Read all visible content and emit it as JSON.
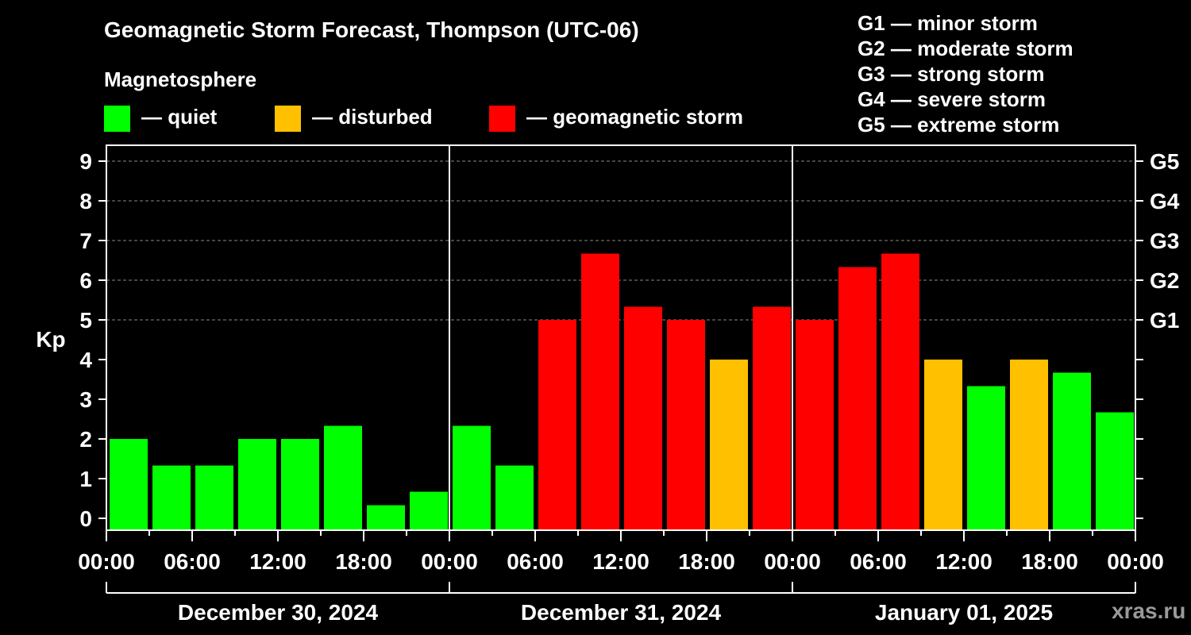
{
  "header": {
    "title": "Geomagnetic Storm Forecast, Thompson (UTC-06)",
    "magnetosphere_label": "Magnetosphere"
  },
  "legend": [
    {
      "label": "— quiet",
      "color": "#00ff00"
    },
    {
      "label": "— disturbed",
      "color": "#ffc000"
    },
    {
      "label": "— geomagnetic storm",
      "color": "#ff0000"
    }
  ],
  "storm_levels": [
    "G1 — minor storm",
    "G2 — moderate storm",
    "G3 — strong storm",
    "G4 — severe storm",
    "G5 — extreme storm"
  ],
  "watermark": "xras.ru",
  "chart_data": {
    "type": "bar",
    "ylabel": "Kp",
    "ylim": [
      -0.3,
      9.4
    ],
    "yticks": [
      0,
      1,
      2,
      3,
      4,
      5,
      6,
      7,
      8,
      9
    ],
    "right_labels": [
      {
        "kp": 5,
        "label": "G1"
      },
      {
        "kp": 6,
        "label": "G2"
      },
      {
        "kp": 7,
        "label": "G3"
      },
      {
        "kp": 8,
        "label": "G4"
      },
      {
        "kp": 9,
        "label": "G5"
      }
    ],
    "grid_lines_at": [
      5,
      6,
      7,
      8,
      9
    ],
    "xtick_labels": [
      "00:00",
      "06:00",
      "12:00",
      "18:00",
      "00:00",
      "06:00",
      "12:00",
      "18:00",
      "00:00",
      "06:00",
      "12:00",
      "18:00",
      "00:00"
    ],
    "days": [
      "December 30, 2024",
      "December 31, 2024",
      "January 01, 2025"
    ],
    "interval_hours": 3,
    "values": [
      2.0,
      1.33,
      1.33,
      2.0,
      2.0,
      2.33,
      0.33,
      0.67,
      2.33,
      1.33,
      5.0,
      6.67,
      5.33,
      5.0,
      4.0,
      5.33,
      5.0,
      6.33,
      6.67,
      4.0,
      3.33,
      4.0,
      3.67,
      2.67
    ],
    "categories": [
      "quiet",
      "quiet",
      "quiet",
      "quiet",
      "quiet",
      "quiet",
      "quiet",
      "quiet",
      "quiet",
      "quiet",
      "storm",
      "storm",
      "storm",
      "storm",
      "disturbed",
      "storm",
      "storm",
      "storm",
      "storm",
      "disturbed",
      "quiet",
      "disturbed",
      "quiet",
      "quiet"
    ],
    "colors": {
      "quiet": "#00ff00",
      "disturbed": "#ffc000",
      "storm": "#ff0000"
    }
  }
}
